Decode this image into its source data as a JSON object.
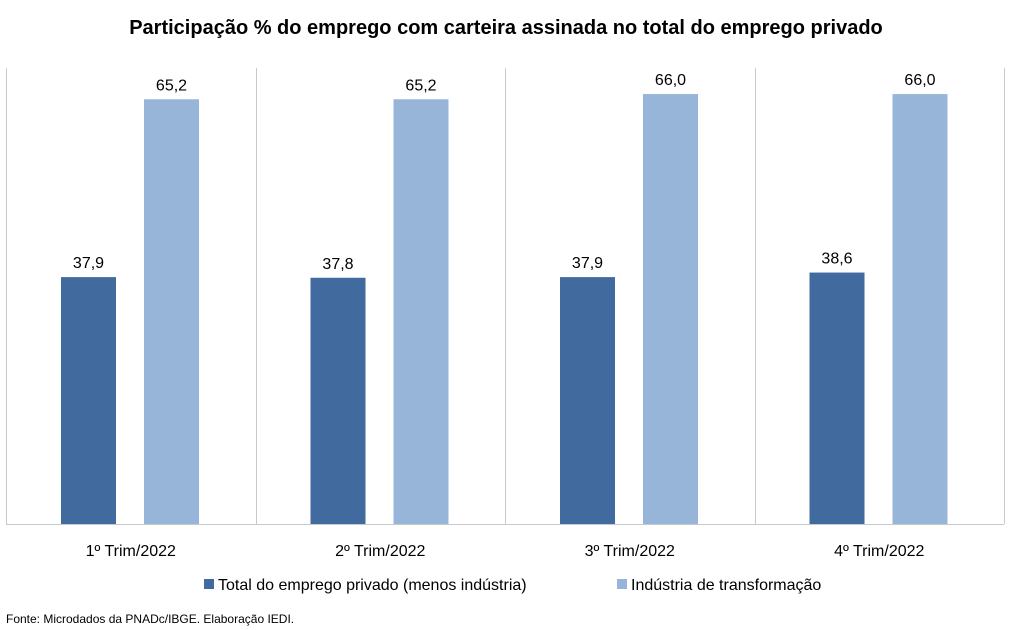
{
  "chart_data": {
    "type": "bar",
    "title": "Participação % do emprego com carteira assinada no total do emprego privado",
    "categories": [
      "1º Trim/2022",
      "2º Trim/2022",
      "3º Trim/2022",
      "4º Trim/2022"
    ],
    "series": [
      {
        "name": "Total do emprego privado (menos indústria)",
        "values": [
          37.9,
          37.8,
          37.9,
          38.6
        ],
        "color": "#416a9e"
      },
      {
        "name": "Indústria de transformação",
        "values": [
          65.2,
          65.2,
          66.0,
          66.0
        ],
        "color": "#97b4d9"
      }
    ],
    "data_labels": [
      [
        "37,9",
        "37,8",
        "37,9",
        "38,6"
      ],
      [
        "65,2",
        "65,2",
        "66,0",
        "66,0"
      ]
    ],
    "ylim": [
      0,
      70
    ],
    "xlabel": "",
    "ylabel": "",
    "grid": false,
    "legend_position": "bottom"
  },
  "source": "Fonte: Microdados da PNADc/IBGE. Elaboração IEDI."
}
